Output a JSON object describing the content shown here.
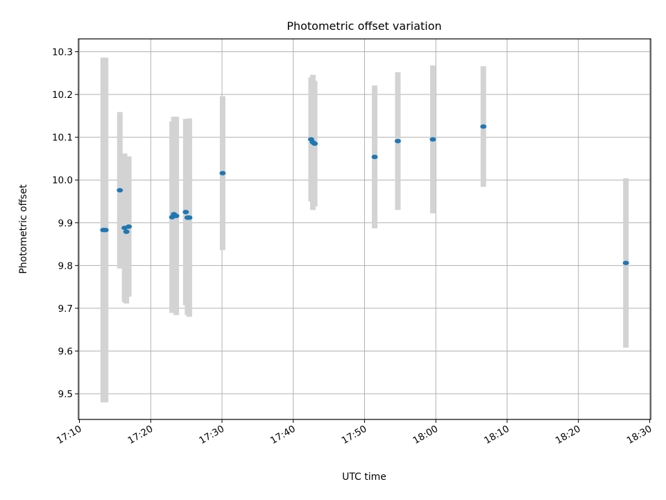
{
  "chart_data": {
    "type": "scatter",
    "title": "Photometric offset variation",
    "xlabel": "UTC time",
    "ylabel": "Photometric offset",
    "xlim": [
      "17:10",
      "18:30"
    ],
    "ylim": [
      9.44,
      10.33
    ],
    "x_ticks": [
      "17:10",
      "17:20",
      "17:30",
      "17:40",
      "17:50",
      "18:00",
      "18:10",
      "18:20",
      "18:30"
    ],
    "y_ticks": [
      "9.5",
      "9.6",
      "9.7",
      "9.8",
      "9.9",
      "10.0",
      "10.1",
      "10.2",
      "10.3"
    ],
    "grid": true,
    "colors": {
      "point": "#1f77b4",
      "errorbar": "#d3d3d3"
    },
    "points": [
      {
        "t": "17:13:20",
        "y": 9.883,
        "err": 0.403
      },
      {
        "t": "17:13:40",
        "y": 9.883,
        "err": 0.403
      },
      {
        "t": "17:15:40",
        "y": 9.976,
        "err": 0.183
      },
      {
        "t": "17:16:20",
        "y": 9.888,
        "err": 0.174
      },
      {
        "t": "17:16:35",
        "y": 9.879,
        "err": 0.168
      },
      {
        "t": "17:16:55",
        "y": 9.891,
        "err": 0.164
      },
      {
        "t": "17:23:00",
        "y": 9.913,
        "err": 0.224
      },
      {
        "t": "17:23:15",
        "y": 9.92,
        "err": 0.228
      },
      {
        "t": "17:23:35",
        "y": 9.916,
        "err": 0.232
      },
      {
        "t": "17:24:55",
        "y": 9.925,
        "err": 0.218
      },
      {
        "t": "17:25:10",
        "y": 9.912,
        "err": 0.228
      },
      {
        "t": "17:25:25",
        "y": 9.912,
        "err": 0.232
      },
      {
        "t": "17:30:05",
        "y": 10.016,
        "err": 0.18
      },
      {
        "t": "17:42:30",
        "y": 10.095,
        "err": 0.145
      },
      {
        "t": "17:42:45",
        "y": 10.088,
        "err": 0.158
      },
      {
        "t": "17:43:00",
        "y": 10.085,
        "err": 0.147
      },
      {
        "t": "17:51:25",
        "y": 10.054,
        "err": 0.167
      },
      {
        "t": "17:54:40",
        "y": 10.091,
        "err": 0.161
      },
      {
        "t": "17:59:35",
        "y": 10.095,
        "err": 0.173
      },
      {
        "t": "18:06:40",
        "y": 10.125,
        "err": 0.141
      },
      {
        "t": "18:26:40",
        "y": 9.806,
        "err": 0.198
      }
    ]
  }
}
